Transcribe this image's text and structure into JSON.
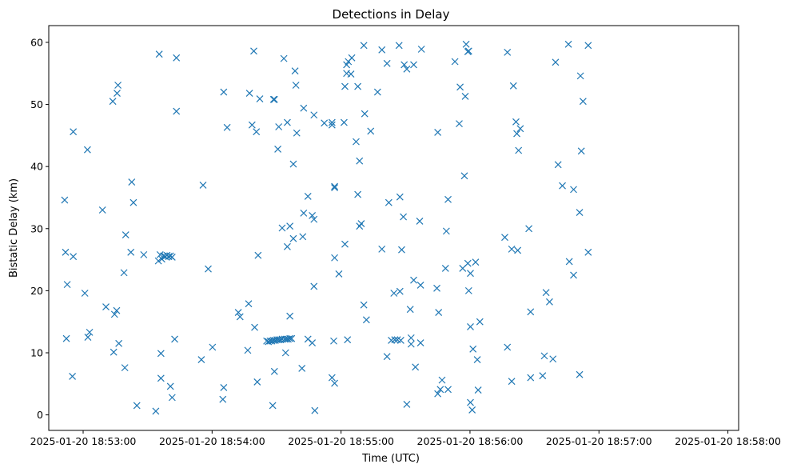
{
  "chart_data": {
    "type": "scatter",
    "title": "Detections in Delay",
    "xlabel": "Time (UTC)",
    "ylabel": "Bistatic Delay (km)",
    "x_ticks": [
      "2025-01-20 18:53:00",
      "2025-01-20 18:54:00",
      "2025-01-20 18:55:00",
      "2025-01-20 18:56:00",
      "2025-01-20 18:57:00",
      "2025-01-20 18:58:00"
    ],
    "y_ticks": [
      0,
      10,
      20,
      30,
      40,
      50,
      60
    ],
    "xlim": [
      "2025-01-20 18:52:44",
      "2025-01-20 18:58:05"
    ],
    "ylim": [
      -2.5,
      62.7
    ],
    "grid": false,
    "marker": "x",
    "marker_color": "#1f77b4",
    "points": [
      [
        "2025-01-20 18:52:51.4",
        34.6
      ],
      [
        "2025-01-20 18:52:51.8",
        26.2
      ],
      [
        "2025-01-20 18:52:52.2",
        12.3
      ],
      [
        "2025-01-20 18:52:52.6",
        21.0
      ],
      [
        "2025-01-20 18:52:55.0",
        6.2
      ],
      [
        "2025-01-20 18:52:55.4",
        45.6
      ],
      [
        "2025-01-20 18:52:55.4",
        25.5
      ],
      [
        "2025-01-20 18:53:00.8",
        19.6
      ],
      [
        "2025-01-20 18:53:02.0",
        42.7
      ],
      [
        "2025-01-20 18:53:02.2",
        12.5
      ],
      [
        "2025-01-20 18:53:03.0",
        13.3
      ],
      [
        "2025-01-20 18:53:09.0",
        33.0
      ],
      [
        "2025-01-20 18:53:10.6",
        17.4
      ],
      [
        "2025-01-20 18:53:13.8",
        50.5
      ],
      [
        "2025-01-20 18:53:14.2",
        10.1
      ],
      [
        "2025-01-20 18:53:14.6",
        16.2
      ],
      [
        "2025-01-20 18:53:15.6",
        16.8
      ],
      [
        "2025-01-20 18:53:15.8",
        51.8
      ],
      [
        "2025-01-20 18:53:16.2",
        53.1
      ],
      [
        "2025-01-20 18:53:16.6",
        11.5
      ],
      [
        "2025-01-20 18:53:19.0",
        22.9
      ],
      [
        "2025-01-20 18:53:19.4",
        7.6
      ],
      [
        "2025-01-20 18:53:19.8",
        29.0
      ],
      [
        "2025-01-20 18:53:22.2",
        26.2
      ],
      [
        "2025-01-20 18:53:22.6",
        37.5
      ],
      [
        "2025-01-20 18:53:23.4",
        34.2
      ],
      [
        "2025-01-20 18:53:25.0",
        1.5
      ],
      [
        "2025-01-20 18:53:28.2",
        25.8
      ],
      [
        "2025-01-20 18:53:33.8",
        0.6
      ],
      [
        "2025-01-20 18:53:35.4",
        58.1
      ],
      [
        "2025-01-20 18:53:35.0",
        24.8
      ],
      [
        "2025-01-20 18:53:35.8",
        25.8
      ],
      [
        "2025-01-20 18:53:36.2",
        9.9
      ],
      [
        "2025-01-20 18:53:36.2",
        5.9
      ],
      [
        "2025-01-20 18:53:36.6",
        25.1
      ],
      [
        "2025-01-20 18:53:37.4",
        25.6
      ],
      [
        "2025-01-20 18:53:38.2",
        25.5
      ],
      [
        "2025-01-20 18:53:39.0",
        25.7
      ],
      [
        "2025-01-20 18:53:39.8",
        25.5
      ],
      [
        "2025-01-20 18:53:40.6",
        25.6
      ],
      [
        "2025-01-20 18:53:40.6",
        4.6
      ],
      [
        "2025-01-20 18:53:41.4",
        2.8
      ],
      [
        "2025-01-20 18:53:41.4",
        25.4
      ],
      [
        "2025-01-20 18:53:42.6",
        12.2
      ],
      [
        "2025-01-20 18:53:43.4",
        57.5
      ],
      [
        "2025-01-20 18:53:43.4",
        48.9
      ],
      [
        "2025-01-20 18:53:55.0",
        8.9
      ],
      [
        "2025-01-20 18:53:55.8",
        37.0
      ],
      [
        "2025-01-20 18:53:58.2",
        23.5
      ],
      [
        "2025-01-20 18:54:00.2",
        10.9
      ],
      [
        "2025-01-20 18:54:05.0",
        2.5
      ],
      [
        "2025-01-20 18:54:05.4",
        52.0
      ],
      [
        "2025-01-20 18:54:05.4",
        4.4
      ],
      [
        "2025-01-20 18:54:07.0",
        46.3
      ],
      [
        "2025-01-20 18:54:12.2",
        16.5
      ],
      [
        "2025-01-20 18:54:13.0",
        15.8
      ],
      [
        "2025-01-20 18:54:16.6",
        10.4
      ],
      [
        "2025-01-20 18:54:17.0",
        17.9
      ],
      [
        "2025-01-20 18:54:17.4",
        51.8
      ],
      [
        "2025-01-20 18:54:18.6",
        46.7
      ],
      [
        "2025-01-20 18:54:19.4",
        58.6
      ],
      [
        "2025-01-20 18:54:19.8",
        14.1
      ],
      [
        "2025-01-20 18:54:20.6",
        45.6
      ],
      [
        "2025-01-20 18:54:21.0",
        5.3
      ],
      [
        "2025-01-20 18:54:21.4",
        25.7
      ],
      [
        "2025-01-20 18:54:22.2",
        50.9
      ],
      [
        "2025-01-20 18:54:25.4",
        11.9
      ],
      [
        "2025-01-20 18:54:26.2",
        11.8
      ],
      [
        "2025-01-20 18:54:27.0",
        11.9
      ],
      [
        "2025-01-20 18:54:27.8",
        11.9
      ],
      [
        "2025-01-20 18:54:28.2",
        1.5
      ],
      [
        "2025-01-20 18:54:28.6",
        50.8
      ],
      [
        "2025-01-20 18:54:28.6",
        12.0
      ],
      [
        "2025-01-20 18:54:29.0",
        50.8
      ],
      [
        "2025-01-20 18:54:29.0",
        7.0
      ],
      [
        "2025-01-20 18:54:29.4",
        12.0
      ],
      [
        "2025-01-20 18:54:30.2",
        12.1
      ],
      [
        "2025-01-20 18:54:30.6",
        42.8
      ],
      [
        "2025-01-20 18:54:31.0",
        46.4
      ],
      [
        "2025-01-20 18:54:31.0",
        12.1
      ],
      [
        "2025-01-20 18:54:31.8",
        12.1
      ],
      [
        "2025-01-20 18:54:32.6",
        12.2
      ],
      [
        "2025-01-20 18:54:32.6",
        30.1
      ],
      [
        "2025-01-20 18:54:33.4",
        57.4
      ],
      [
        "2025-01-20 18:54:33.8",
        12.2
      ],
      [
        "2025-01-20 18:54:34.2",
        10.0
      ],
      [
        "2025-01-20 18:54:34.6",
        12.2
      ],
      [
        "2025-01-20 18:54:35.0",
        47.1
      ],
      [
        "2025-01-20 18:54:35.0",
        27.1
      ],
      [
        "2025-01-20 18:54:35.4",
        12.2
      ],
      [
        "2025-01-20 18:54:36.2",
        30.4
      ],
      [
        "2025-01-20 18:54:36.2",
        12.3
      ],
      [
        "2025-01-20 18:54:36.2",
        15.9
      ],
      [
        "2025-01-20 18:54:37.0",
        12.3
      ],
      [
        "2025-01-20 18:54:37.8",
        40.4
      ],
      [
        "2025-01-20 18:54:37.8",
        28.4
      ],
      [
        "2025-01-20 18:54:38.6",
        55.4
      ],
      [
        "2025-01-20 18:54:39.0",
        53.1
      ],
      [
        "2025-01-20 18:54:39.4",
        45.4
      ],
      [
        "2025-01-20 18:54:41.8",
        7.5
      ],
      [
        "2025-01-20 18:54:42.2",
        28.7
      ],
      [
        "2025-01-20 18:54:42.6",
        49.4
      ],
      [
        "2025-01-20 18:54:42.6",
        32.5
      ],
      [
        "2025-01-20 18:54:44.6",
        35.2
      ],
      [
        "2025-01-20 18:54:44.6",
        12.2
      ],
      [
        "2025-01-20 18:54:46.6",
        11.6
      ],
      [
        "2025-01-20 18:54:46.6",
        32.1
      ],
      [
        "2025-01-20 18:54:47.4",
        48.3
      ],
      [
        "2025-01-20 18:54:47.4",
        20.7
      ],
      [
        "2025-01-20 18:54:47.4",
        31.5
      ],
      [
        "2025-01-20 18:54:47.8",
        0.7
      ],
      [
        "2025-01-20 18:54:52.2",
        47.0
      ],
      [
        "2025-01-20 18:54:55.8",
        47.1
      ],
      [
        "2025-01-20 18:54:55.8",
        46.7
      ],
      [
        "2025-01-20 18:54:55.8",
        6.0
      ],
      [
        "2025-01-20 18:54:56.6",
        11.9
      ],
      [
        "2025-01-20 18:54:57.0",
        25.3
      ],
      [
        "2025-01-20 18:54:57.0",
        36.6
      ],
      [
        "2025-01-20 18:54:57.0",
        36.8
      ],
      [
        "2025-01-20 18:54:57.0",
        5.1
      ],
      [
        "2025-01-20 18:54:59.0",
        22.7
      ],
      [
        "2025-01-20 18:55:01.4",
        47.1
      ],
      [
        "2025-01-20 18:55:01.8",
        27.5
      ],
      [
        "2025-01-20 18:55:01.8",
        52.9
      ],
      [
        "2025-01-20 18:55:02.6",
        56.4
      ],
      [
        "2025-01-20 18:55:02.6",
        55.0
      ],
      [
        "2025-01-20 18:55:03.0",
        12.1
      ],
      [
        "2025-01-20 18:55:03.4",
        56.9
      ],
      [
        "2025-01-20 18:55:04.6",
        54.9
      ],
      [
        "2025-01-20 18:55:05.0",
        57.5
      ],
      [
        "2025-01-20 18:55:07.0",
        44.0
      ],
      [
        "2025-01-20 18:55:07.8",
        52.9
      ],
      [
        "2025-01-20 18:55:07.8",
        35.5
      ],
      [
        "2025-01-20 18:55:08.6",
        40.9
      ],
      [
        "2025-01-20 18:55:08.6",
        30.4
      ],
      [
        "2025-01-20 18:55:09.4",
        30.8
      ],
      [
        "2025-01-20 18:55:10.6",
        59.5
      ],
      [
        "2025-01-20 18:55:10.6",
        17.7
      ],
      [
        "2025-01-20 18:55:11.0",
        48.5
      ],
      [
        "2025-01-20 18:55:11.8",
        15.3
      ],
      [
        "2025-01-20 18:55:13.8",
        45.7
      ],
      [
        "2025-01-20 18:55:17.0",
        52.0
      ],
      [
        "2025-01-20 18:55:19.0",
        26.7
      ],
      [
        "2025-01-20 18:55:19.0",
        58.8
      ],
      [
        "2025-01-20 18:55:21.4",
        56.6
      ],
      [
        "2025-01-20 18:55:21.4",
        9.4
      ],
      [
        "2025-01-20 18:55:22.2",
        34.2
      ],
      [
        "2025-01-20 18:55:23.4",
        12.0
      ],
      [
        "2025-01-20 18:55:24.6",
        19.6
      ],
      [
        "2025-01-20 18:55:25.0",
        12.1
      ],
      [
        "2025-01-20 18:55:26.2",
        12.1
      ],
      [
        "2025-01-20 18:55:27.0",
        59.5
      ],
      [
        "2025-01-20 18:55:27.4",
        19.9
      ],
      [
        "2025-01-20 18:55:27.4",
        35.1
      ],
      [
        "2025-01-20 18:55:27.8",
        12.0
      ],
      [
        "2025-01-20 18:55:28.2",
        26.6
      ],
      [
        "2025-01-20 18:55:29.0",
        31.9
      ],
      [
        "2025-01-20 18:55:29.4",
        56.4
      ],
      [
        "2025-01-20 18:55:30.6",
        1.7
      ],
      [
        "2025-01-20 18:55:30.6",
        55.7
      ],
      [
        "2025-01-20 18:55:32.2",
        17.0
      ],
      [
        "2025-01-20 18:55:32.6",
        12.4
      ],
      [
        "2025-01-20 18:55:32.6",
        11.4
      ],
      [
        "2025-01-20 18:55:33.8",
        56.4
      ],
      [
        "2025-01-20 18:55:33.8",
        21.7
      ],
      [
        "2025-01-20 18:55:34.6",
        7.7
      ],
      [
        "2025-01-20 18:55:36.6",
        31.2
      ],
      [
        "2025-01-20 18:55:37.0",
        20.9
      ],
      [
        "2025-01-20 18:55:37.0",
        11.6
      ],
      [
        "2025-01-20 18:55:37.4",
        58.9
      ],
      [
        "2025-01-20 18:55:44.6",
        20.4
      ],
      [
        "2025-01-20 18:55:45.0",
        45.5
      ],
      [
        "2025-01-20 18:55:45.0",
        3.4
      ],
      [
        "2025-01-20 18:55:45.4",
        16.5
      ],
      [
        "2025-01-20 18:55:46.2",
        4.1
      ],
      [
        "2025-01-20 18:55:47.0",
        5.6
      ],
      [
        "2025-01-20 18:55:48.6",
        23.6
      ],
      [
        "2025-01-20 18:55:49.0",
        29.6
      ],
      [
        "2025-01-20 18:55:49.8",
        34.7
      ],
      [
        "2025-01-20 18:55:49.8",
        4.1
      ],
      [
        "2025-01-20 18:55:53.0",
        56.9
      ],
      [
        "2025-01-20 18:55:55.0",
        46.9
      ],
      [
        "2025-01-20 18:55:55.4",
        52.8
      ],
      [
        "2025-01-20 18:55:56.6",
        23.6
      ],
      [
        "2025-01-20 18:55:57.4",
        38.5
      ],
      [
        "2025-01-20 18:55:57.8",
        51.3
      ],
      [
        "2025-01-20 18:55:58.2",
        59.7
      ],
      [
        "2025-01-20 18:55:59.0",
        58.5
      ],
      [
        "2025-01-20 18:55:59.0",
        24.4
      ],
      [
        "2025-01-20 18:55:59.4",
        58.6
      ],
      [
        "2025-01-20 18:55:59.4",
        20.0
      ],
      [
        "2025-01-20 18:56:00.2",
        22.8
      ],
      [
        "2025-01-20 18:56:00.2",
        14.2
      ],
      [
        "2025-01-20 18:56:00.2",
        2.0
      ],
      [
        "2025-01-20 18:56:01.0",
        0.8
      ],
      [
        "2025-01-20 18:56:01.4",
        10.6
      ],
      [
        "2025-01-20 18:56:02.6",
        24.6
      ],
      [
        "2025-01-20 18:56:03.4",
        8.9
      ],
      [
        "2025-01-20 18:56:03.8",
        4.0
      ],
      [
        "2025-01-20 18:56:04.6",
        15.0
      ],
      [
        "2025-01-20 18:56:16.2",
        28.6
      ],
      [
        "2025-01-20 18:56:17.4",
        58.4
      ],
      [
        "2025-01-20 18:56:17.4",
        10.9
      ],
      [
        "2025-01-20 18:56:19.4",
        5.4
      ],
      [
        "2025-01-20 18:56:19.4",
        26.7
      ],
      [
        "2025-01-20 18:56:20.2",
        53.0
      ],
      [
        "2025-01-20 18:56:21.4",
        47.2
      ],
      [
        "2025-01-20 18:56:21.8",
        45.3
      ],
      [
        "2025-01-20 18:56:22.2",
        26.5
      ],
      [
        "2025-01-20 18:56:22.6",
        42.6
      ],
      [
        "2025-01-20 18:56:23.4",
        46.1
      ],
      [
        "2025-01-20 18:56:27.4",
        30.0
      ],
      [
        "2025-01-20 18:56:28.2",
        16.6
      ],
      [
        "2025-01-20 18:56:28.2",
        6.0
      ],
      [
        "2025-01-20 18:56:33.8",
        6.3
      ],
      [
        "2025-01-20 18:56:34.6",
        9.5
      ],
      [
        "2025-01-20 18:56:35.4",
        19.7
      ],
      [
        "2025-01-20 18:56:37.0",
        18.2
      ],
      [
        "2025-01-20 18:56:38.6",
        9.0
      ],
      [
        "2025-01-20 18:56:39.8",
        56.8
      ],
      [
        "2025-01-20 18:56:41.0",
        40.3
      ],
      [
        "2025-01-20 18:56:43.0",
        36.9
      ],
      [
        "2025-01-20 18:56:45.8",
        59.7
      ],
      [
        "2025-01-20 18:56:46.2",
        24.7
      ],
      [
        "2025-01-20 18:56:48.2",
        22.5
      ],
      [
        "2025-01-20 18:56:48.2",
        36.3
      ],
      [
        "2025-01-20 18:56:51.0",
        6.5
      ],
      [
        "2025-01-20 18:56:51.0",
        32.6
      ],
      [
        "2025-01-20 18:56:51.4",
        54.6
      ],
      [
        "2025-01-20 18:56:51.8",
        42.5
      ],
      [
        "2025-01-20 18:56:52.6",
        50.5
      ],
      [
        "2025-01-20 18:56:55.0",
        59.5
      ],
      [
        "2025-01-20 18:56:55.0",
        26.2
      ]
    ]
  }
}
